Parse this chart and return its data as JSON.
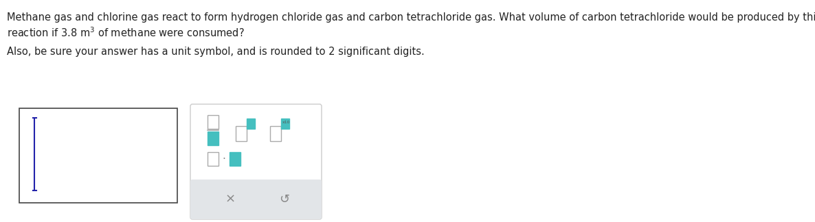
{
  "bg_color": "#ffffff",
  "text_color": "#222222",
  "line1": "Methane gas and chlorine gas react to form hydrogen chloride gas and carbon tetrachloride gas. What volume of carbon tetrachloride would be produced by this",
  "line2": "reaction if 3.8 m$^{3}$ of methane were consumed?",
  "line3": "Also, be sure your answer has a unit symbol, and is rounded to 2 significant digits.",
  "font_size_main": 10.5,
  "teal_color": "#45BFBF",
  "teal_light": "#6DD0D0",
  "gray_color": "#e2e5e8",
  "dark_gray": "#888888",
  "border_color": "#888888",
  "cursor_color": "#2222AA"
}
